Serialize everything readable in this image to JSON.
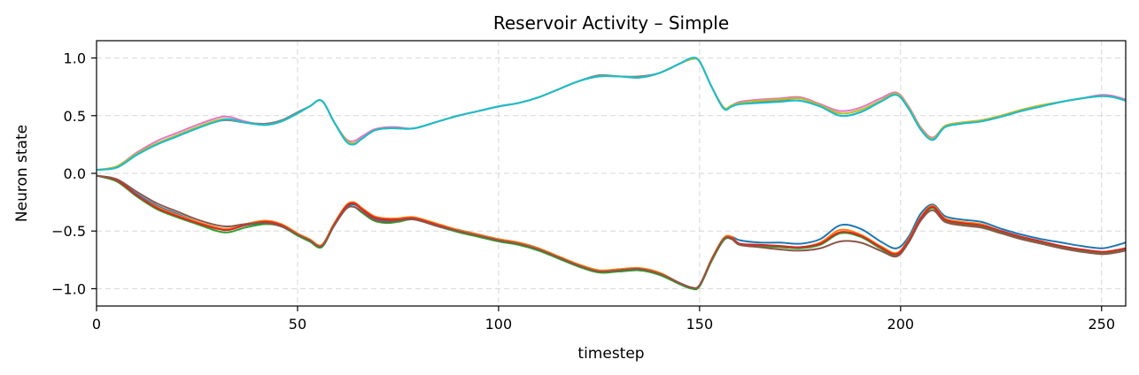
{
  "chart_data": {
    "type": "line",
    "title": "Reservoir Activity – Simple",
    "xlabel": "timestep",
    "ylabel": "Neuron state",
    "xlim": [
      0,
      256
    ],
    "ylim": [
      -1.15,
      1.15
    ],
    "xticks": [
      0,
      50,
      100,
      150,
      200,
      250
    ],
    "xtick_labels": [
      "0",
      "50",
      "100",
      "150",
      "200",
      "250"
    ],
    "yticks": [
      1.0,
      0.5,
      0.0,
      -0.5,
      -1.0
    ],
    "ytick_labels": [
      "1.0",
      "0.5",
      "0.0",
      "−0.5",
      "−1.0"
    ],
    "grid": true,
    "legend": "none",
    "x": [
      0,
      5,
      10,
      15,
      20,
      25,
      30,
      33,
      37,
      42,
      46,
      50,
      53,
      56,
      59,
      62,
      64,
      66,
      69,
      72,
      75,
      79,
      85,
      90,
      95,
      100,
      105,
      110,
      115,
      120,
      125,
      130,
      135,
      140,
      145,
      148,
      150,
      153,
      156,
      158,
      160,
      165,
      170,
      175,
      180,
      185,
      190,
      195,
      199,
      202,
      205,
      208,
      211,
      215,
      220,
      225,
      230,
      235,
      240,
      245,
      250,
      253,
      256
    ],
    "series": [
      {
        "color": "#1f77b4",
        "values": [
          -0.02,
          -0.06,
          -0.18,
          -0.28,
          -0.35,
          -0.42,
          -0.47,
          -0.48,
          -0.45,
          -0.43,
          -0.46,
          -0.53,
          -0.58,
          -0.63,
          -0.45,
          -0.3,
          -0.27,
          -0.31,
          -0.39,
          -0.41,
          -0.4,
          -0.38,
          -0.45,
          -0.49,
          -0.53,
          -0.57,
          -0.6,
          -0.65,
          -0.73,
          -0.8,
          -0.85,
          -0.85,
          -0.84,
          -0.87,
          -0.95,
          -0.99,
          -0.97,
          -0.75,
          -0.57,
          -0.55,
          -0.58,
          -0.6,
          -0.6,
          -0.61,
          -0.57,
          -0.45,
          -0.48,
          -0.59,
          -0.65,
          -0.55,
          -0.35,
          -0.27,
          -0.37,
          -0.4,
          -0.42,
          -0.48,
          -0.53,
          -0.57,
          -0.6,
          -0.63,
          -0.65,
          -0.63,
          -0.6
        ]
      },
      {
        "color": "#ff7f0e",
        "values": [
          -0.02,
          -0.06,
          -0.19,
          -0.29,
          -0.36,
          -0.42,
          -0.47,
          -0.48,
          -0.44,
          -0.41,
          -0.44,
          -0.52,
          -0.57,
          -0.62,
          -0.44,
          -0.28,
          -0.25,
          -0.3,
          -0.37,
          -0.39,
          -0.39,
          -0.38,
          -0.44,
          -0.49,
          -0.53,
          -0.57,
          -0.6,
          -0.65,
          -0.72,
          -0.79,
          -0.84,
          -0.83,
          -0.82,
          -0.86,
          -0.95,
          -0.99,
          -0.97,
          -0.74,
          -0.56,
          -0.55,
          -0.61,
          -0.62,
          -0.63,
          -0.64,
          -0.6,
          -0.49,
          -0.53,
          -0.63,
          -0.69,
          -0.57,
          -0.38,
          -0.28,
          -0.39,
          -0.42,
          -0.44,
          -0.5,
          -0.55,
          -0.59,
          -0.63,
          -0.66,
          -0.68,
          -0.67,
          -0.65
        ]
      },
      {
        "color": "#2ca02c",
        "values": [
          -0.02,
          -0.07,
          -0.2,
          -0.31,
          -0.38,
          -0.44,
          -0.5,
          -0.51,
          -0.47,
          -0.44,
          -0.46,
          -0.54,
          -0.59,
          -0.64,
          -0.46,
          -0.31,
          -0.29,
          -0.34,
          -0.41,
          -0.43,
          -0.42,
          -0.4,
          -0.46,
          -0.51,
          -0.55,
          -0.59,
          -0.62,
          -0.67,
          -0.74,
          -0.81,
          -0.86,
          -0.85,
          -0.84,
          -0.88,
          -0.96,
          -1.0,
          -0.98,
          -0.76,
          -0.58,
          -0.57,
          -0.62,
          -0.63,
          -0.64,
          -0.65,
          -0.62,
          -0.52,
          -0.55,
          -0.65,
          -0.71,
          -0.59,
          -0.4,
          -0.3,
          -0.41,
          -0.44,
          -0.46,
          -0.51,
          -0.56,
          -0.6,
          -0.64,
          -0.67,
          -0.69,
          -0.68,
          -0.66
        ]
      },
      {
        "color": "#d62728",
        "values": [
          -0.02,
          -0.06,
          -0.19,
          -0.3,
          -0.37,
          -0.43,
          -0.48,
          -0.49,
          -0.45,
          -0.42,
          -0.45,
          -0.53,
          -0.58,
          -0.63,
          -0.45,
          -0.29,
          -0.26,
          -0.31,
          -0.38,
          -0.4,
          -0.4,
          -0.39,
          -0.45,
          -0.5,
          -0.54,
          -0.58,
          -0.61,
          -0.66,
          -0.73,
          -0.8,
          -0.85,
          -0.84,
          -0.83,
          -0.87,
          -0.95,
          -0.99,
          -0.97,
          -0.75,
          -0.57,
          -0.56,
          -0.61,
          -0.62,
          -0.63,
          -0.64,
          -0.61,
          -0.51,
          -0.54,
          -0.64,
          -0.7,
          -0.58,
          -0.39,
          -0.29,
          -0.4,
          -0.43,
          -0.45,
          -0.5,
          -0.55,
          -0.59,
          -0.63,
          -0.66,
          -0.68,
          -0.67,
          -0.65
        ]
      },
      {
        "color": "#8c564b",
        "values": [
          -0.02,
          -0.05,
          -0.16,
          -0.26,
          -0.33,
          -0.4,
          -0.45,
          -0.46,
          -0.44,
          -0.43,
          -0.46,
          -0.53,
          -0.58,
          -0.63,
          -0.46,
          -0.31,
          -0.29,
          -0.33,
          -0.4,
          -0.42,
          -0.41,
          -0.4,
          -0.46,
          -0.5,
          -0.54,
          -0.58,
          -0.61,
          -0.66,
          -0.73,
          -0.8,
          -0.85,
          -0.84,
          -0.83,
          -0.87,
          -0.95,
          -0.99,
          -0.97,
          -0.75,
          -0.57,
          -0.57,
          -0.62,
          -0.64,
          -0.66,
          -0.67,
          -0.65,
          -0.59,
          -0.6,
          -0.67,
          -0.72,
          -0.6,
          -0.41,
          -0.32,
          -0.42,
          -0.45,
          -0.47,
          -0.52,
          -0.57,
          -0.61,
          -0.65,
          -0.68,
          -0.7,
          -0.69,
          -0.67
        ]
      },
      {
        "color": "#e377c2",
        "values": [
          0.03,
          0.06,
          0.18,
          0.28,
          0.35,
          0.42,
          0.48,
          0.49,
          0.45,
          0.42,
          0.45,
          0.52,
          0.58,
          0.63,
          0.45,
          0.3,
          0.28,
          0.32,
          0.38,
          0.4,
          0.4,
          0.39,
          0.45,
          0.5,
          0.54,
          0.58,
          0.61,
          0.66,
          0.73,
          0.8,
          0.84,
          0.84,
          0.83,
          0.87,
          0.95,
          0.99,
          0.97,
          0.75,
          0.57,
          0.59,
          0.62,
          0.64,
          0.65,
          0.66,
          0.6,
          0.54,
          0.57,
          0.65,
          0.7,
          0.58,
          0.4,
          0.31,
          0.41,
          0.44,
          0.46,
          0.5,
          0.55,
          0.59,
          0.62,
          0.65,
          0.68,
          0.67,
          0.64
        ]
      },
      {
        "color": "#7f7f7f",
        "values": [
          0.03,
          0.05,
          0.16,
          0.25,
          0.32,
          0.39,
          0.45,
          0.46,
          0.44,
          0.43,
          0.46,
          0.53,
          0.58,
          0.63,
          0.45,
          0.29,
          0.26,
          0.3,
          0.37,
          0.39,
          0.39,
          0.39,
          0.45,
          0.5,
          0.54,
          0.58,
          0.61,
          0.66,
          0.73,
          0.8,
          0.85,
          0.84,
          0.84,
          0.87,
          0.95,
          1.0,
          0.97,
          0.75,
          0.57,
          0.58,
          0.61,
          0.62,
          0.63,
          0.63,
          0.58,
          0.5,
          0.53,
          0.62,
          0.68,
          0.56,
          0.38,
          0.29,
          0.4,
          0.43,
          0.45,
          0.49,
          0.54,
          0.58,
          0.62,
          0.65,
          0.67,
          0.66,
          0.63
        ]
      },
      {
        "color": "#bcbd22",
        "values": [
          0.03,
          0.06,
          0.17,
          0.26,
          0.33,
          0.4,
          0.46,
          0.47,
          0.44,
          0.42,
          0.45,
          0.52,
          0.58,
          0.63,
          0.45,
          0.29,
          0.26,
          0.3,
          0.37,
          0.39,
          0.39,
          0.39,
          0.45,
          0.5,
          0.54,
          0.58,
          0.61,
          0.66,
          0.73,
          0.8,
          0.84,
          0.84,
          0.83,
          0.87,
          0.95,
          0.99,
          0.97,
          0.75,
          0.57,
          0.59,
          0.61,
          0.63,
          0.64,
          0.65,
          0.59,
          0.52,
          0.55,
          0.63,
          0.69,
          0.57,
          0.39,
          0.3,
          0.41,
          0.44,
          0.46,
          0.5,
          0.55,
          0.59,
          0.62,
          0.65,
          0.67,
          0.66,
          0.63
        ]
      },
      {
        "color": "#17becf",
        "values": [
          0.03,
          0.05,
          0.16,
          0.25,
          0.32,
          0.39,
          0.45,
          0.47,
          0.44,
          0.42,
          0.45,
          0.52,
          0.58,
          0.63,
          0.45,
          0.28,
          0.25,
          0.3,
          0.37,
          0.39,
          0.39,
          0.39,
          0.45,
          0.5,
          0.54,
          0.58,
          0.61,
          0.66,
          0.73,
          0.8,
          0.84,
          0.84,
          0.83,
          0.87,
          0.95,
          1.0,
          0.97,
          0.75,
          0.56,
          0.58,
          0.6,
          0.61,
          0.62,
          0.63,
          0.58,
          0.5,
          0.53,
          0.62,
          0.68,
          0.56,
          0.38,
          0.29,
          0.4,
          0.43,
          0.45,
          0.49,
          0.54,
          0.58,
          0.62,
          0.65,
          0.67,
          0.66,
          0.63
        ]
      }
    ]
  }
}
